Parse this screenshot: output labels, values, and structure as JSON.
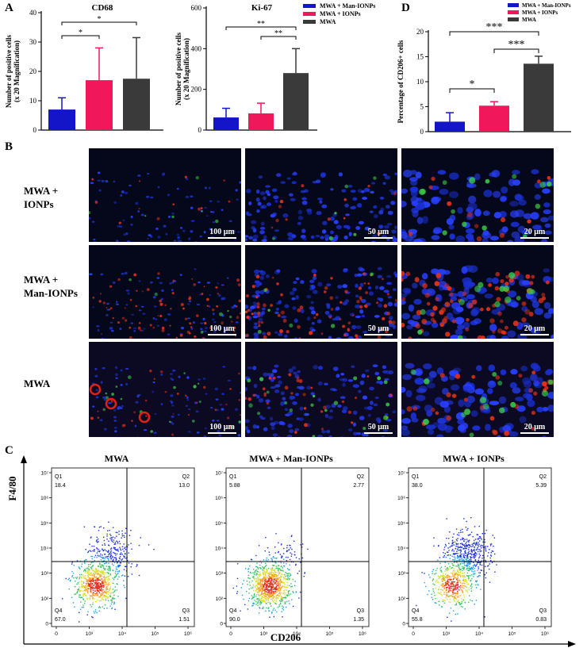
{
  "panel_labels": {
    "a": "A",
    "b": "B",
    "c": "C",
    "d": "D"
  },
  "legend": {
    "items": [
      {
        "label": "MWA + Man-IONPs",
        "color": "#1414c8"
      },
      {
        "label": "MWA + IONPs",
        "color": "#f0185a"
      },
      {
        "label": "MWA",
        "color": "#3a3a3a"
      }
    ]
  },
  "chart_data": [
    {
      "type": "bar",
      "title": "CD68",
      "ylabel_line1": "Number of positive cells",
      "ylabel_line2": "(x 20 Magnification)",
      "categories": [
        "MWA + Man-IONPs",
        "MWA + IONPs",
        "MWA"
      ],
      "values": [
        7,
        17,
        17.5
      ],
      "errors": [
        4,
        11,
        14
      ],
      "colors": [
        "#1414c8",
        "#f0185a",
        "#3a3a3a"
      ],
      "ylim": [
        0,
        40
      ],
      "yticks": [
        "0",
        "10",
        "20",
        "30",
        "40"
      ],
      "significance": [
        {
          "from": 0,
          "to": 1,
          "label": "*"
        },
        {
          "from": 0,
          "to": 2,
          "label": "*"
        }
      ]
    },
    {
      "type": "bar",
      "title": "Ki-67",
      "ylabel_line1": "Number of positive cells",
      "ylabel_line2": "(x 20 Magnification)",
      "categories": [
        "MWA + Man-IONPs",
        "MWA + IONPs",
        "MWA"
      ],
      "values": [
        62,
        82,
        280
      ],
      "errors": [
        45,
        50,
        120
      ],
      "colors": [
        "#1414c8",
        "#f0185a",
        "#3a3a3a"
      ],
      "ylim": [
        0,
        600
      ],
      "yticks": [
        "0",
        "200",
        "400",
        "600"
      ],
      "significance": [
        {
          "from": 1,
          "to": 2,
          "label": "**"
        },
        {
          "from": 0,
          "to": 2,
          "label": "**"
        }
      ]
    },
    {
      "type": "bar",
      "title": "",
      "ylabel_line1": "Percentage of CD206+ cells",
      "ylabel_line2": "",
      "categories": [
        "MWA + Man-IONPs",
        "MWA + IONPs",
        "MWA"
      ],
      "values": [
        2,
        5.2,
        13.6
      ],
      "errors": [
        1.8,
        0.8,
        1.5
      ],
      "colors": [
        "#1414c8",
        "#f0185a",
        "#3a3a3a"
      ],
      "ylim": [
        0,
        20
      ],
      "yticks": [
        "0",
        "5",
        "10",
        "15",
        "20"
      ],
      "significance": [
        {
          "from": 0,
          "to": 1,
          "label": "*"
        },
        {
          "from": 1,
          "to": 2,
          "label": "***"
        },
        {
          "from": 0,
          "to": 2,
          "label": "***"
        }
      ]
    }
  ],
  "micrographs": {
    "rows": [
      {
        "label_line1": "MWA +",
        "label_line2": "IONPs",
        "scales": [
          "100 μm",
          "50 μm",
          "20 μm"
        ]
      },
      {
        "label_line1": "MWA +",
        "label_line2": "Man-IONPs",
        "scales": [
          "100 μm",
          "50 μm",
          "20 μm"
        ]
      },
      {
        "label_line1": "MWA",
        "label_line2": "",
        "scales": [
          "100 μm",
          "50 μm",
          "20 μm"
        ]
      }
    ]
  },
  "flow": {
    "y_axis": "F4/80",
    "x_axis": "CD206",
    "x_ticks": [
      "0",
      "10³",
      "10⁴",
      "10⁵",
      "10⁶"
    ],
    "y_ticks": [
      "10⁷",
      "10⁶",
      "10⁵",
      "10⁴",
      "10³",
      "10²",
      "0"
    ],
    "plots": [
      {
        "title": "MWA",
        "q1": "18.4",
        "q2": "13.0",
        "q3": "1.51",
        "q4": "67.0",
        "spread": "mid"
      },
      {
        "title": "MWA + Man-IONPs",
        "q1": "5.88",
        "q2": "2.77",
        "q3": "1.35",
        "q4": "90.0",
        "spread": "low"
      },
      {
        "title": "MWA + IONPs",
        "q1": "38.0",
        "q2": "5.39",
        "q3": "0.83",
        "q4": "55.8",
        "spread": "high"
      }
    ],
    "quadrant_labels": {
      "q1": "Q1",
      "q2": "Q2",
      "q3": "Q3",
      "q4": "Q4"
    }
  }
}
